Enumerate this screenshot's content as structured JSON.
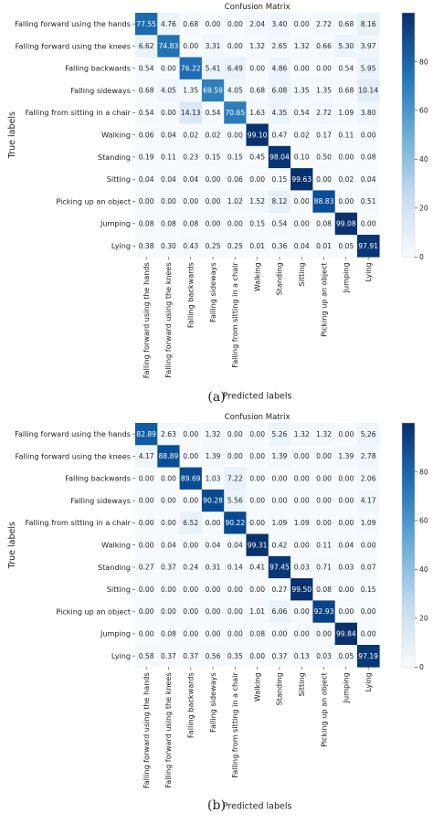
{
  "chart_data": [
    {
      "type": "heatmap",
      "title": "Confusion Matrix",
      "xlabel": "Predicted labels",
      "ylabel": "True labels",
      "caption": "(a)",
      "labels": [
        "Falling forward using the hands",
        "Falling forward using the knees",
        "Falling backwards",
        "Falling sideways",
        "Falling from sitting in a chair",
        "Walking",
        "Standing",
        "Sitting",
        "Picking up an object",
        "Jumping",
        "Lying"
      ],
      "values": [
        [
          77.55,
          4.76,
          0.68,
          0.0,
          0.0,
          2.04,
          3.4,
          0.0,
          2.72,
          0.68,
          8.16
        ],
        [
          6.62,
          74.83,
          0.0,
          3.31,
          0.0,
          1.32,
          2.65,
          1.32,
          0.66,
          5.3,
          3.97
        ],
        [
          0.54,
          0.0,
          76.22,
          5.41,
          6.49,
          0.0,
          4.86,
          0.0,
          0.0,
          0.54,
          5.95
        ],
        [
          0.68,
          4.05,
          1.35,
          69.59,
          4.05,
          0.68,
          6.08,
          1.35,
          1.35,
          0.68,
          10.14
        ],
        [
          0.54,
          0.0,
          14.13,
          0.54,
          70.65,
          1.63,
          4.35,
          0.54,
          2.72,
          1.09,
          3.8
        ],
        [
          0.06,
          0.04,
          0.02,
          0.02,
          0.0,
          99.1,
          0.47,
          0.02,
          0.17,
          0.11,
          0.0
        ],
        [
          0.19,
          0.11,
          0.23,
          0.15,
          0.15,
          0.45,
          98.04,
          0.1,
          0.5,
          0.0,
          0.08
        ],
        [
          0.04,
          0.04,
          0.04,
          0.0,
          0.06,
          0.0,
          0.15,
          99.63,
          0.0,
          0.02,
          0.04
        ],
        [
          0.0,
          0.0,
          0.0,
          0.0,
          1.02,
          1.52,
          8.12,
          0.0,
          88.83,
          0.0,
          0.51
        ],
        [
          0.08,
          0.08,
          0.08,
          0.0,
          0.0,
          0.15,
          0.54,
          0.0,
          0.08,
          99.08,
          0.0
        ],
        [
          0.38,
          0.3,
          0.43,
          0.25,
          0.25,
          0.01,
          0.36,
          0.04,
          0.01,
          0.05,
          97.91
        ]
      ],
      "colorbar_ticks": [
        0,
        20,
        40,
        60,
        80
      ],
      "value_range": [
        0,
        100
      ]
    },
    {
      "type": "heatmap",
      "title": "Confusion Matrix",
      "xlabel": "Predicted labels",
      "ylabel": "True labels",
      "caption": "(b)",
      "labels": [
        "Falling forward using the hands",
        "Falling forward using the knees",
        "Falling backwards",
        "Falling sideways",
        "Falling from sitting in a chair",
        "Walking",
        "Standing",
        "Sitting",
        "Picking up an object",
        "Jumping",
        "Lying"
      ],
      "values": [
        [
          82.89,
          2.63,
          0.0,
          1.32,
          0.0,
          0.0,
          5.26,
          1.32,
          1.32,
          0.0,
          5.26
        ],
        [
          4.17,
          88.89,
          0.0,
          1.39,
          0.0,
          0.0,
          1.39,
          0.0,
          0.0,
          1.39,
          2.78
        ],
        [
          0.0,
          0.0,
          89.69,
          1.03,
          7.22,
          0.0,
          0.0,
          0.0,
          0.0,
          0.0,
          2.06
        ],
        [
          0.0,
          0.0,
          0.0,
          90.28,
          5.56,
          0.0,
          0.0,
          0.0,
          0.0,
          0.0,
          4.17
        ],
        [
          0.0,
          0.0,
          6.52,
          0.0,
          90.22,
          0.0,
          1.09,
          1.09,
          0.0,
          0.0,
          1.09
        ],
        [
          0.0,
          0.04,
          0.0,
          0.04,
          0.04,
          99.31,
          0.42,
          0.0,
          0.11,
          0.04,
          0.0
        ],
        [
          0.27,
          0.37,
          0.24,
          0.31,
          0.14,
          0.41,
          97.45,
          0.03,
          0.71,
          0.03,
          0.07
        ],
        [
          0.0,
          0.0,
          0.0,
          0.0,
          0.0,
          0.0,
          0.27,
          99.5,
          0.08,
          0.0,
          0.15
        ],
        [
          0.0,
          0.0,
          0.0,
          0.0,
          0.0,
          1.01,
          6.06,
          0.0,
          92.93,
          0.0,
          0.0
        ],
        [
          0.0,
          0.08,
          0.0,
          0.0,
          0.0,
          0.08,
          0.0,
          0.0,
          0.0,
          99.84,
          0.0
        ],
        [
          0.58,
          0.37,
          0.37,
          0.56,
          0.35,
          0.0,
          0.37,
          0.13,
          0.03,
          0.05,
          97.19
        ]
      ],
      "colorbar_ticks": [
        0,
        20,
        40,
        60,
        80
      ],
      "value_range": [
        0,
        100
      ]
    }
  ]
}
